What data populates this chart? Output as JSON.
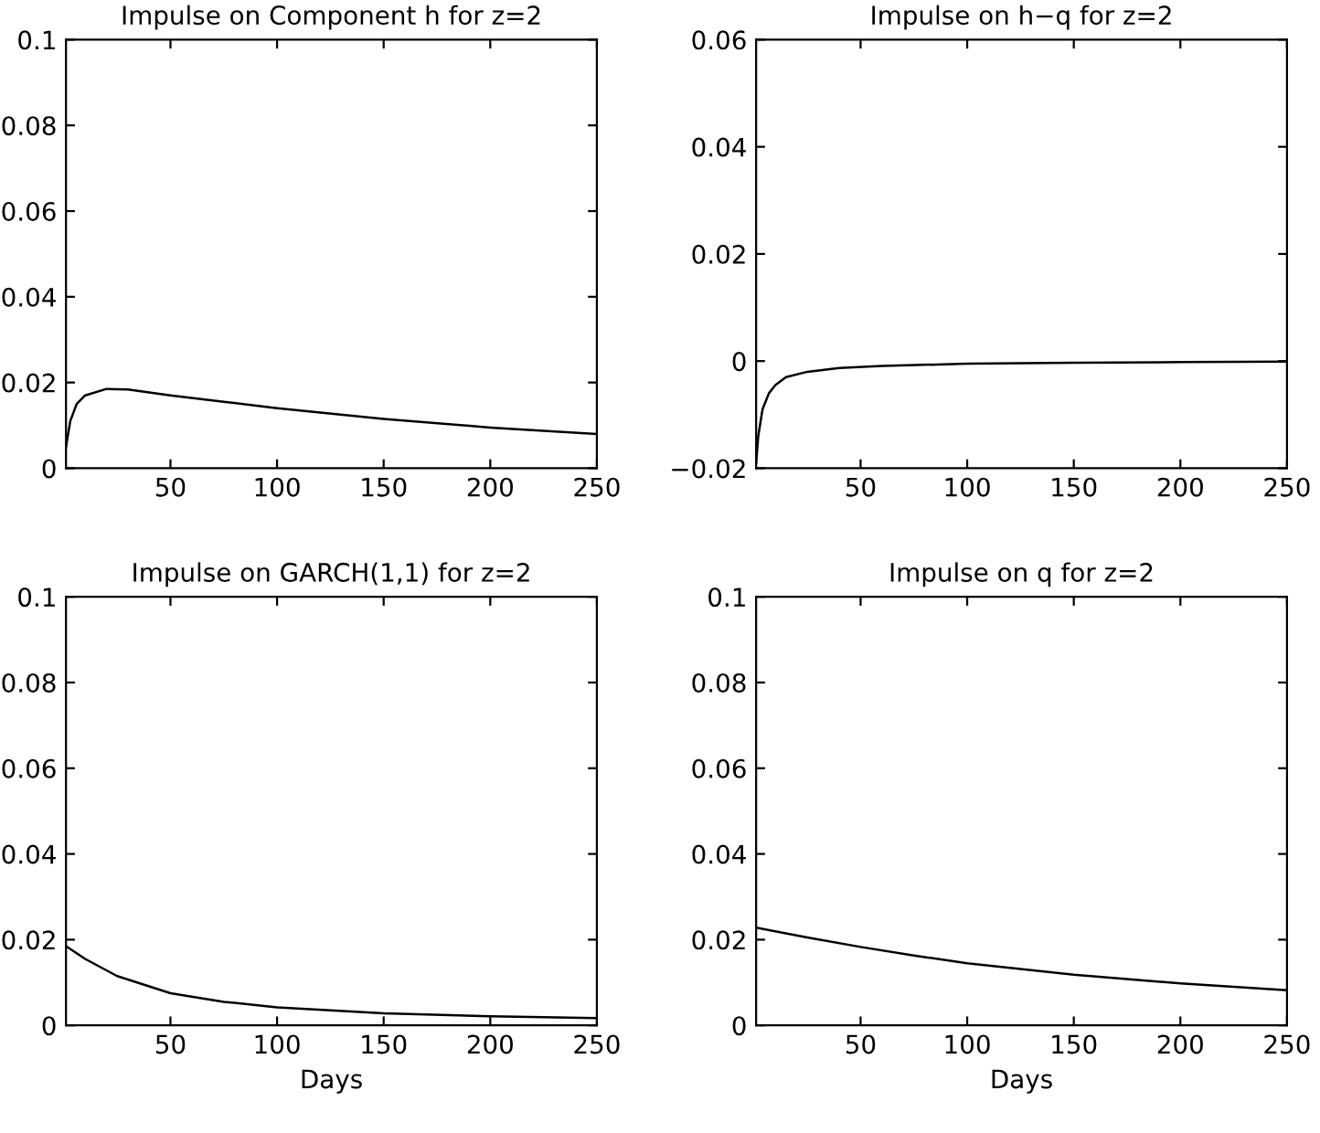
{
  "chart_data": [
    {
      "type": "line",
      "title": "Impulse on Component h for z=2",
      "x": [
        1,
        3,
        6,
        10,
        20,
        30,
        50,
        75,
        100,
        150,
        200,
        250
      ],
      "series": [
        {
          "color": "#000000",
          "values": [
            0.005,
            0.011,
            0.015,
            0.017,
            0.0185,
            0.0184,
            0.017,
            0.0155,
            0.014,
            0.0115,
            0.0095,
            0.008
          ]
        }
      ],
      "xlim": [
        1,
        250
      ],
      "xticks": [
        50,
        100,
        150,
        200,
        250
      ],
      "ylim": [
        0,
        0.1
      ],
      "yticks": [
        0,
        0.02,
        0.04,
        0.06,
        0.08,
        0.1
      ]
    },
    {
      "type": "line",
      "title": "Impulse on h−q for z=2",
      "x": [
        1,
        2,
        4,
        7,
        10,
        15,
        25,
        40,
        60,
        100,
        150,
        200,
        250
      ],
      "series": [
        {
          "color": "#000000",
          "values": [
            -0.019,
            -0.014,
            -0.009,
            -0.006,
            -0.0045,
            -0.003,
            -0.002,
            -0.0013,
            -0.0009,
            -0.0005,
            -0.0003,
            -0.0002,
            -0.0001
          ]
        }
      ],
      "xlim": [
        1,
        250
      ],
      "xticks": [
        50,
        100,
        150,
        200,
        250
      ],
      "ylim": [
        -0.02,
        0.06
      ],
      "yticks": [
        {
          "value": -0.02,
          "label": "−0.02"
        },
        0,
        0.02,
        0.04,
        0.06
      ]
    },
    {
      "type": "line",
      "title": "Impulse on GARCH(1,1) for z=2",
      "xlabel": "Days",
      "x": [
        1,
        10,
        25,
        50,
        75,
        100,
        150,
        200,
        250
      ],
      "series": [
        {
          "color": "#000000",
          "values": [
            0.0185,
            0.0155,
            0.0115,
            0.0075,
            0.0055,
            0.0042,
            0.0028,
            0.0021,
            0.0017
          ]
        }
      ],
      "xlim": [
        1,
        250
      ],
      "xticks": [
        50,
        100,
        150,
        200,
        250
      ],
      "ylim": [
        0,
        0.1
      ],
      "yticks": [
        0,
        0.02,
        0.04,
        0.06,
        0.08,
        0.1
      ]
    },
    {
      "type": "line",
      "title": "Impulse on q for z=2",
      "xlabel": "Days",
      "x": [
        1,
        25,
        50,
        75,
        100,
        150,
        200,
        250
      ],
      "series": [
        {
          "color": "#000000",
          "values": [
            0.0228,
            0.0205,
            0.0183,
            0.0163,
            0.0145,
            0.0118,
            0.0098,
            0.0082
          ]
        }
      ],
      "xlim": [
        1,
        250
      ],
      "xticks": [
        50,
        100,
        150,
        200,
        250
      ],
      "ylim": [
        0,
        0.1
      ],
      "yticks": [
        0,
        0.02,
        0.04,
        0.06,
        0.08,
        0.1
      ]
    }
  ]
}
